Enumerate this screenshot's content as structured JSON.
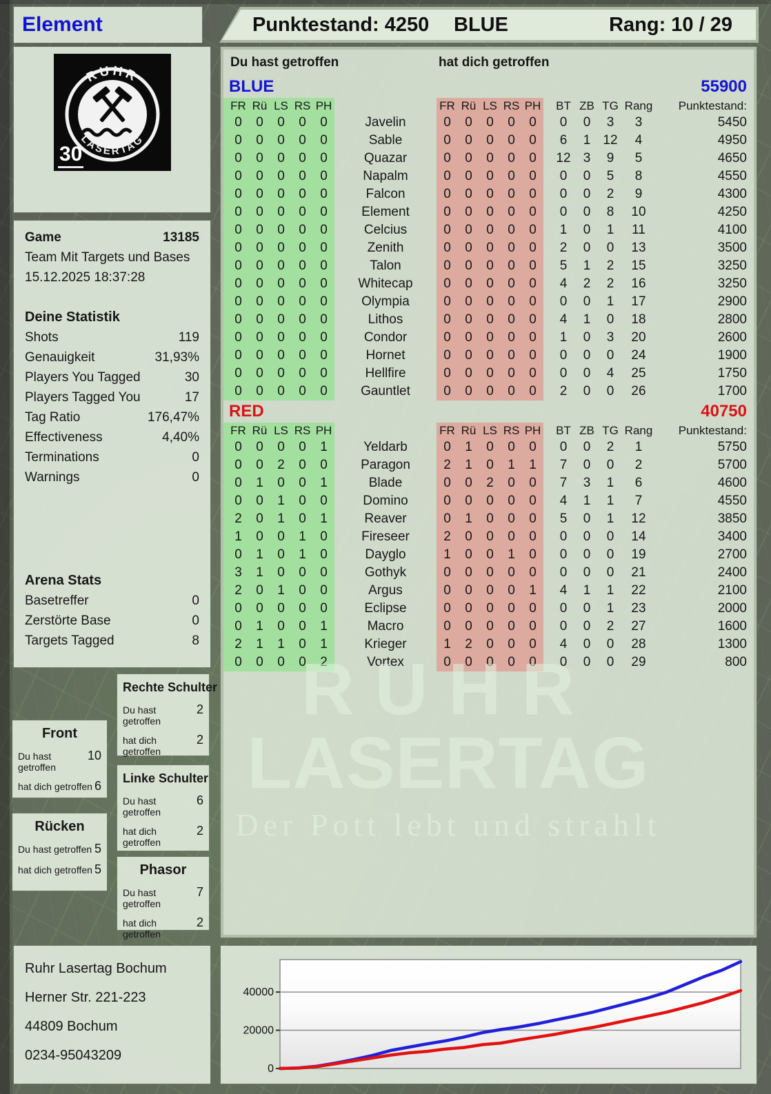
{
  "header": {
    "player": "Element",
    "score_label": "Punktestand: 4250",
    "team": "BLUE",
    "rank_label": "Rang: 10 / 29"
  },
  "logo": {
    "ring_top": "RUHR",
    "ring_bottom": "LASERTAG",
    "badge": "30"
  },
  "game": {
    "title": "Game",
    "id": "13185",
    "mode": "Team Mit Targets und Bases",
    "datetime": "15.12.2025 18:37:28"
  },
  "stats": {
    "title": "Deine Statistik",
    "rows": [
      {
        "label": "Shots",
        "value": "119"
      },
      {
        "label": "Genauigkeit",
        "value": "31,93%"
      },
      {
        "label": "Players You Tagged",
        "value": "30"
      },
      {
        "label": "Players Tagged You",
        "value": "17"
      },
      {
        "label": "Tag Ratio",
        "value": "176,47%"
      },
      {
        "label": "Effectiveness",
        "value": "4,40%"
      },
      {
        "label": "Terminations",
        "value": "0"
      },
      {
        "label": "Warnings",
        "value": "0"
      }
    ]
  },
  "arena": {
    "title": "Arena Stats",
    "rows": [
      {
        "label": "Basetreffer",
        "value": "0"
      },
      {
        "label": "Zerstörte Base",
        "value": "0"
      },
      {
        "label": "Targets Tagged",
        "value": "8"
      }
    ]
  },
  "zones": {
    "hit_label": "Du hast getroffen",
    "got_label": "hat dich getroffen",
    "boxes": [
      {
        "name": "Front",
        "hit": "10",
        "got": "6"
      },
      {
        "name": "Rücken",
        "hit": "5",
        "got": "5"
      },
      {
        "name": "Rechte Schulter",
        "hit": "2",
        "got": "2"
      },
      {
        "name": "Linke Schulter",
        "hit": "6",
        "got": "2"
      },
      {
        "name": "Phasor",
        "hit": "7",
        "got": "2"
      }
    ]
  },
  "table": {
    "you_hit_label": "Du hast getroffen",
    "hit_you_label": "hat dich getroffen",
    "zone_cols": [
      "FR",
      "Rü",
      "LS",
      "RS",
      "PH"
    ],
    "stat_cols": [
      "BT",
      "ZB",
      "TG",
      "Rang",
      "Punktestand:"
    ],
    "teams": [
      {
        "name": "BLUE",
        "total": "55900",
        "color": "#1414d2",
        "rows": [
          {
            "player": "Javelin",
            "you": [
              0,
              0,
              0,
              0,
              0
            ],
            "them": [
              0,
              0,
              0,
              0,
              0
            ],
            "bt": 0,
            "zb": 0,
            "tg": 3,
            "rang": 3,
            "punkte": 5450
          },
          {
            "player": "Sable",
            "you": [
              0,
              0,
              0,
              0,
              0
            ],
            "them": [
              0,
              0,
              0,
              0,
              0
            ],
            "bt": 6,
            "zb": 1,
            "tg": 12,
            "rang": 4,
            "punkte": 4950
          },
          {
            "player": "Quazar",
            "you": [
              0,
              0,
              0,
              0,
              0
            ],
            "them": [
              0,
              0,
              0,
              0,
              0
            ],
            "bt": 12,
            "zb": 3,
            "tg": 9,
            "rang": 5,
            "punkte": 4650
          },
          {
            "player": "Napalm",
            "you": [
              0,
              0,
              0,
              0,
              0
            ],
            "them": [
              0,
              0,
              0,
              0,
              0
            ],
            "bt": 0,
            "zb": 0,
            "tg": 5,
            "rang": 8,
            "punkte": 4550
          },
          {
            "player": "Falcon",
            "you": [
              0,
              0,
              0,
              0,
              0
            ],
            "them": [
              0,
              0,
              0,
              0,
              0
            ],
            "bt": 0,
            "zb": 0,
            "tg": 2,
            "rang": 9,
            "punkte": 4300
          },
          {
            "player": "Element",
            "you": [
              0,
              0,
              0,
              0,
              0
            ],
            "them": [
              0,
              0,
              0,
              0,
              0
            ],
            "bt": 0,
            "zb": 0,
            "tg": 8,
            "rang": 10,
            "punkte": 4250
          },
          {
            "player": "Celcius",
            "you": [
              0,
              0,
              0,
              0,
              0
            ],
            "them": [
              0,
              0,
              0,
              0,
              0
            ],
            "bt": 1,
            "zb": 0,
            "tg": 1,
            "rang": 11,
            "punkte": 4100
          },
          {
            "player": "Zenith",
            "you": [
              0,
              0,
              0,
              0,
              0
            ],
            "them": [
              0,
              0,
              0,
              0,
              0
            ],
            "bt": 2,
            "zb": 0,
            "tg": 0,
            "rang": 13,
            "punkte": 3500
          },
          {
            "player": "Talon",
            "you": [
              0,
              0,
              0,
              0,
              0
            ],
            "them": [
              0,
              0,
              0,
              0,
              0
            ],
            "bt": 5,
            "zb": 1,
            "tg": 2,
            "rang": 15,
            "punkte": 3250
          },
          {
            "player": "Whitecap",
            "you": [
              0,
              0,
              0,
              0,
              0
            ],
            "them": [
              0,
              0,
              0,
              0,
              0
            ],
            "bt": 4,
            "zb": 2,
            "tg": 2,
            "rang": 16,
            "punkte": 3250
          },
          {
            "player": "Olympia",
            "you": [
              0,
              0,
              0,
              0,
              0
            ],
            "them": [
              0,
              0,
              0,
              0,
              0
            ],
            "bt": 0,
            "zb": 0,
            "tg": 1,
            "rang": 17,
            "punkte": 2900
          },
          {
            "player": "Lithos",
            "you": [
              0,
              0,
              0,
              0,
              0
            ],
            "them": [
              0,
              0,
              0,
              0,
              0
            ],
            "bt": 4,
            "zb": 1,
            "tg": 0,
            "rang": 18,
            "punkte": 2800
          },
          {
            "player": "Condor",
            "you": [
              0,
              0,
              0,
              0,
              0
            ],
            "them": [
              0,
              0,
              0,
              0,
              0
            ],
            "bt": 1,
            "zb": 0,
            "tg": 3,
            "rang": 20,
            "punkte": 2600
          },
          {
            "player": "Hornet",
            "you": [
              0,
              0,
              0,
              0,
              0
            ],
            "them": [
              0,
              0,
              0,
              0,
              0
            ],
            "bt": 0,
            "zb": 0,
            "tg": 0,
            "rang": 24,
            "punkte": 1900
          },
          {
            "player": "Hellfire",
            "you": [
              0,
              0,
              0,
              0,
              0
            ],
            "them": [
              0,
              0,
              0,
              0,
              0
            ],
            "bt": 0,
            "zb": 0,
            "tg": 4,
            "rang": 25,
            "punkte": 1750
          },
          {
            "player": "Gauntlet",
            "you": [
              0,
              0,
              0,
              0,
              0
            ],
            "them": [
              0,
              0,
              0,
              0,
              0
            ],
            "bt": 2,
            "zb": 0,
            "tg": 0,
            "rang": 26,
            "punkte": 1700
          }
        ]
      },
      {
        "name": "RED",
        "total": "40750",
        "color": "#d81414",
        "rows": [
          {
            "player": "Yeldarb",
            "you": [
              0,
              0,
              0,
              0,
              1
            ],
            "them": [
              0,
              1,
              0,
              0,
              0
            ],
            "bt": 0,
            "zb": 0,
            "tg": 2,
            "rang": 1,
            "punkte": 5750
          },
          {
            "player": "Paragon",
            "you": [
              0,
              0,
              2,
              0,
              0
            ],
            "them": [
              2,
              1,
              0,
              1,
              1
            ],
            "bt": 7,
            "zb": 0,
            "tg": 0,
            "rang": 2,
            "punkte": 5700
          },
          {
            "player": "Blade",
            "you": [
              0,
              1,
              0,
              0,
              1
            ],
            "them": [
              0,
              0,
              2,
              0,
              0
            ],
            "bt": 7,
            "zb": 3,
            "tg": 1,
            "rang": 6,
            "punkte": 4600
          },
          {
            "player": "Domino",
            "you": [
              0,
              0,
              1,
              0,
              0
            ],
            "them": [
              0,
              0,
              0,
              0,
              0
            ],
            "bt": 4,
            "zb": 1,
            "tg": 1,
            "rang": 7,
            "punkte": 4550
          },
          {
            "player": "Reaver",
            "you": [
              2,
              0,
              1,
              0,
              1
            ],
            "them": [
              0,
              1,
              0,
              0,
              0
            ],
            "bt": 5,
            "zb": 0,
            "tg": 1,
            "rang": 12,
            "punkte": 3850
          },
          {
            "player": "Fireseer",
            "you": [
              1,
              0,
              0,
              1,
              0
            ],
            "them": [
              2,
              0,
              0,
              0,
              0
            ],
            "bt": 0,
            "zb": 0,
            "tg": 0,
            "rang": 14,
            "punkte": 3400
          },
          {
            "player": "Dayglo",
            "you": [
              0,
              1,
              0,
              1,
              0
            ],
            "them": [
              1,
              0,
              0,
              1,
              0
            ],
            "bt": 0,
            "zb": 0,
            "tg": 0,
            "rang": 19,
            "punkte": 2700
          },
          {
            "player": "Gothyk",
            "you": [
              3,
              1,
              0,
              0,
              0
            ],
            "them": [
              0,
              0,
              0,
              0,
              0
            ],
            "bt": 0,
            "zb": 0,
            "tg": 0,
            "rang": 21,
            "punkte": 2400
          },
          {
            "player": "Argus",
            "you": [
              2,
              0,
              1,
              0,
              0
            ],
            "them": [
              0,
              0,
              0,
              0,
              1
            ],
            "bt": 4,
            "zb": 1,
            "tg": 1,
            "rang": 22,
            "punkte": 2100
          },
          {
            "player": "Eclipse",
            "you": [
              0,
              0,
              0,
              0,
              0
            ],
            "them": [
              0,
              0,
              0,
              0,
              0
            ],
            "bt": 0,
            "zb": 0,
            "tg": 1,
            "rang": 23,
            "punkte": 2000
          },
          {
            "player": "Macro",
            "you": [
              0,
              1,
              0,
              0,
              1
            ],
            "them": [
              0,
              0,
              0,
              0,
              0
            ],
            "bt": 0,
            "zb": 0,
            "tg": 2,
            "rang": 27,
            "punkte": 1600
          },
          {
            "player": "Krieger",
            "you": [
              2,
              1,
              1,
              0,
              1
            ],
            "them": [
              1,
              2,
              0,
              0,
              0
            ],
            "bt": 4,
            "zb": 0,
            "tg": 0,
            "rang": 28,
            "punkte": 1300
          },
          {
            "player": "Vortex",
            "you": [
              0,
              0,
              0,
              0,
              2
            ],
            "them": [
              0,
              0,
              0,
              0,
              0
            ],
            "bt": 0,
            "zb": 0,
            "tg": 0,
            "rang": 29,
            "punkte": 800
          }
        ]
      }
    ]
  },
  "watermark": {
    "line1": "RUHR",
    "line2": "LASERTAG",
    "line3": "Der Pott lebt und strahlt"
  },
  "footer": {
    "lines": [
      "Ruhr Lasertag Bochum",
      "Herner Str. 221-223",
      "44809 Bochum",
      "0234-95043209"
    ]
  },
  "chart_data": {
    "type": "line",
    "title": "",
    "xlabel": "",
    "ylabel": "",
    "ylim": [
      0,
      57000
    ],
    "yticks": [
      0,
      20000,
      40000
    ],
    "grid": true,
    "legend": "none",
    "series": [
      {
        "name": "BLUE",
        "color": "#2020d8",
        "values": [
          0,
          300,
          1200,
          2800,
          4700,
          6800,
          9400,
          11200,
          12900,
          14500,
          16500,
          18800,
          20400,
          21800,
          23500,
          25500,
          27400,
          29500,
          32000,
          34500,
          37000,
          40000,
          44000,
          48000,
          51500,
          55900
        ]
      },
      {
        "name": "RED",
        "color": "#e01212",
        "values": [
          0,
          200,
          1000,
          2500,
          4000,
          5500,
          7000,
          8200,
          9000,
          10200,
          11000,
          12500,
          13300,
          15000,
          16500,
          18000,
          19800,
          21500,
          23500,
          25500,
          27500,
          29500,
          32000,
          34500,
          37500,
          40750
        ]
      }
    ]
  }
}
